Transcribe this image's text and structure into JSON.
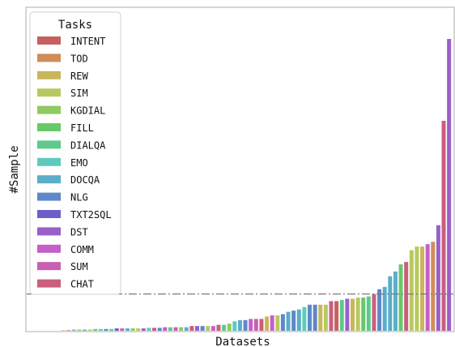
{
  "colors": {
    "INTENT": "#c85f5f",
    "TOD": "#d08c59",
    "REW": "#c9b65a",
    "SIM": "#b7c95f",
    "KGDIAL": "#8fc95f",
    "FILL": "#67c96a",
    "DIALQA": "#5ec98c",
    "EMO": "#5ecabc",
    "DOCQA": "#5aaec9",
    "NLG": "#5f87c9",
    "TXT2SQL": "#6a5fc9",
    "DST": "#9a5fc9",
    "COMM": "#c55fc9",
    "SUM": "#c95fb1",
    "CHAT": "#c95f7c"
  },
  "chart_data": {
    "type": "bar",
    "xlabel": "Datasets",
    "ylabel": "#Sample",
    "ylim": [
      0,
      272
    ],
    "grid": false,
    "legend": {
      "title": "Tasks",
      "position": "top-left",
      "entries": [
        "INTENT",
        "TOD",
        "REW",
        "SIM",
        "KGDIAL",
        "FILL",
        "DIALQA",
        "EMO",
        "DOCQA",
        "NLG",
        "TXT2SQL",
        "DST",
        "COMM",
        "SUM",
        "CHAT"
      ]
    },
    "reference_line": {
      "value": 31,
      "style": "dash-dot"
    },
    "bars": [
      {
        "task": "SIM",
        "value": 0.5
      },
      {
        "task": "SUM",
        "value": 0.5
      },
      {
        "task": "DIALQA",
        "value": 1
      },
      {
        "task": "KGDIAL",
        "value": 1
      },
      {
        "task": "DOCQA",
        "value": 1
      },
      {
        "task": "SIM",
        "value": 1
      },
      {
        "task": "FILL",
        "value": 1.5
      },
      {
        "task": "EMO",
        "value": 1.5
      },
      {
        "task": "NLG",
        "value": 1.5
      },
      {
        "task": "DIALQA",
        "value": 1.5
      },
      {
        "task": "TXT2SQL",
        "value": 2
      },
      {
        "task": "SUM",
        "value": 2
      },
      {
        "task": "DOCQA",
        "value": 2
      },
      {
        "task": "KGDIAL",
        "value": 2
      },
      {
        "task": "SIM",
        "value": 2
      },
      {
        "task": "DST",
        "value": 2
      },
      {
        "task": "EMO",
        "value": 2.5
      },
      {
        "task": "CHAT",
        "value": 2.5
      },
      {
        "task": "NLG",
        "value": 2.5
      },
      {
        "task": "COMM",
        "value": 3
      },
      {
        "task": "DIALQA",
        "value": 3
      },
      {
        "task": "SUM",
        "value": 3
      },
      {
        "task": "KGDIAL",
        "value": 3
      },
      {
        "task": "DOCQA",
        "value": 3
      },
      {
        "task": "CHAT",
        "value": 4
      },
      {
        "task": "DST",
        "value": 4
      },
      {
        "task": "NLG",
        "value": 4
      },
      {
        "task": "SIM",
        "value": 4
      },
      {
        "task": "COMM",
        "value": 4
      },
      {
        "task": "CHAT",
        "value": 5
      },
      {
        "task": "DIALQA",
        "value": 5
      },
      {
        "task": "KGDIAL",
        "value": 6
      },
      {
        "task": "EMO",
        "value": 8
      },
      {
        "task": "DOCQA",
        "value": 9
      },
      {
        "task": "NLG",
        "value": 9
      },
      {
        "task": "COMM",
        "value": 10
      },
      {
        "task": "SUM",
        "value": 10
      },
      {
        "task": "CHAT",
        "value": 10
      },
      {
        "task": "REW",
        "value": 12
      },
      {
        "task": "COMM",
        "value": 13
      },
      {
        "task": "SIM",
        "value": 13
      },
      {
        "task": "NLG",
        "value": 14
      },
      {
        "task": "DOCQA",
        "value": 16
      },
      {
        "task": "NLG",
        "value": 17
      },
      {
        "task": "DOCQA",
        "value": 18
      },
      {
        "task": "EMO",
        "value": 20
      },
      {
        "task": "NLG",
        "value": 22
      },
      {
        "task": "NLG",
        "value": 22
      },
      {
        "task": "REW",
        "value": 22
      },
      {
        "task": "SIM",
        "value": 22
      },
      {
        "task": "CHAT",
        "value": 25
      },
      {
        "task": "INTENT",
        "value": 25
      },
      {
        "task": "DIALQA",
        "value": 26
      },
      {
        "task": "DST",
        "value": 27
      },
      {
        "task": "REW",
        "value": 27
      },
      {
        "task": "SIM",
        "value": 28
      },
      {
        "task": "FILL",
        "value": 28
      },
      {
        "task": "DIALQA",
        "value": 29
      },
      {
        "task": "CHAT",
        "value": 31
      },
      {
        "task": "NLG",
        "value": 35
      },
      {
        "task": "DOCQA",
        "value": 37
      },
      {
        "task": "DOCQA",
        "value": 46
      },
      {
        "task": "DOCQA",
        "value": 50
      },
      {
        "task": "FILL",
        "value": 56
      },
      {
        "task": "CHAT",
        "value": 58
      },
      {
        "task": "SIM",
        "value": 68
      },
      {
        "task": "SIM",
        "value": 71
      },
      {
        "task": "REW",
        "value": 71
      },
      {
        "task": "COMM",
        "value": 73
      },
      {
        "task": "TOD",
        "value": 75
      },
      {
        "task": "DST",
        "value": 89
      },
      {
        "task": "CHAT",
        "value": 177
      },
      {
        "task": "DST",
        "value": 246
      }
    ]
  }
}
